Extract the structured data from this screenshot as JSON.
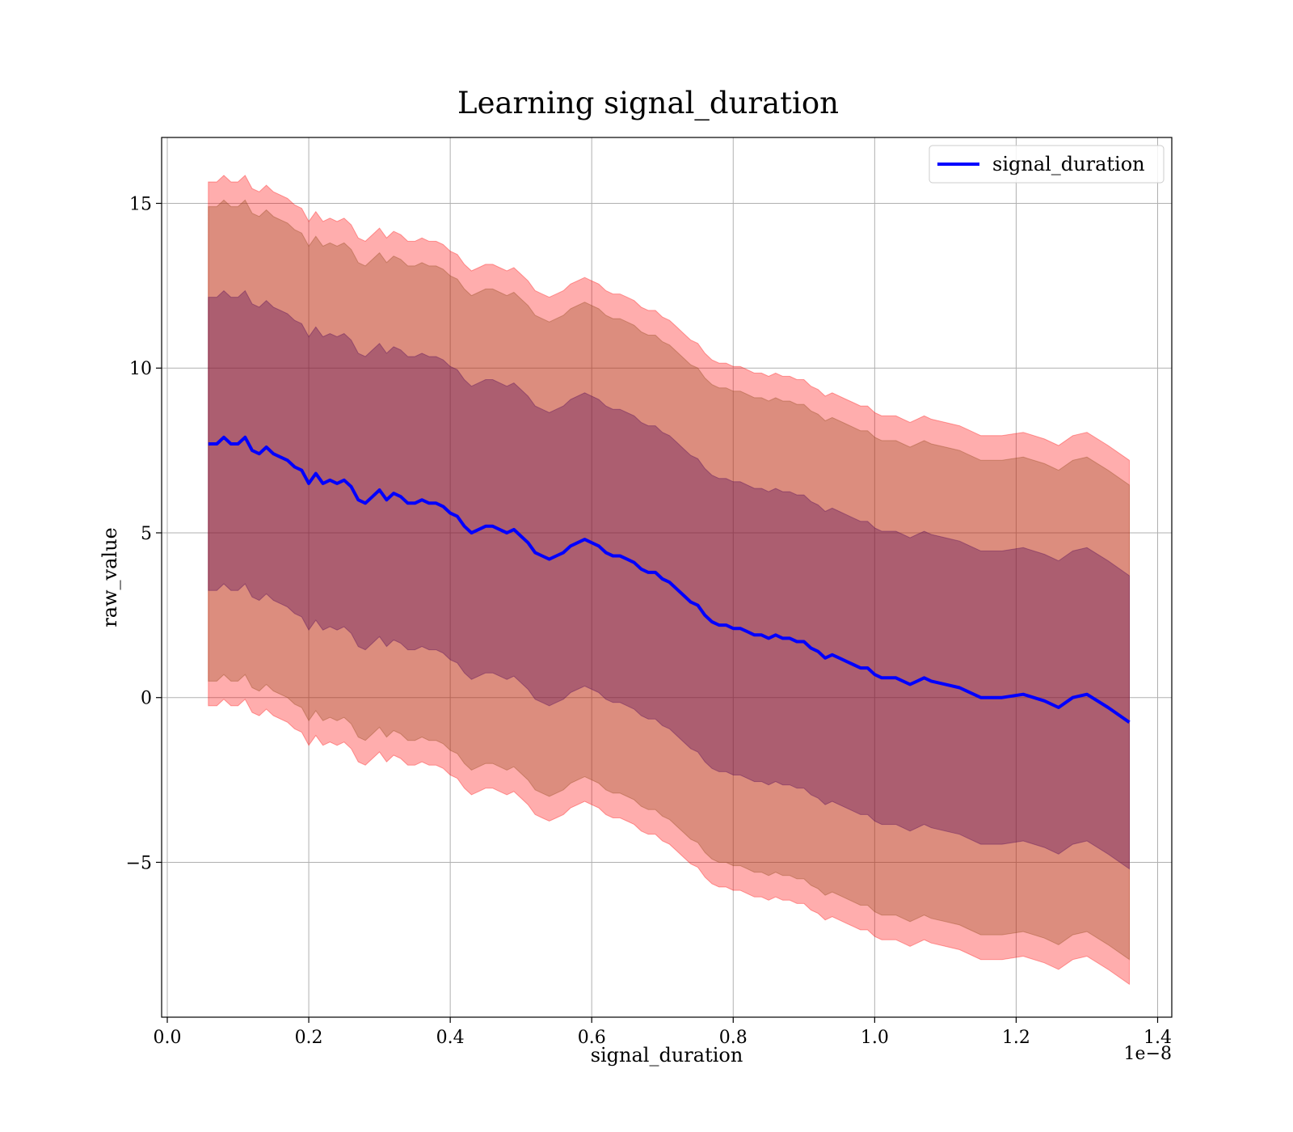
{
  "chart_data": {
    "type": "line",
    "title": "Learning signal_duration",
    "xlabel": "signal_duration",
    "ylabel": "raw_value",
    "x_offset_label": "1e−8",
    "xlim": [
      -0.008,
      1.42
    ],
    "ylim": [
      -9.7,
      17.0
    ],
    "x_ticks": [
      0.0,
      0.2,
      0.4,
      0.6,
      0.8,
      1.0,
      1.2,
      1.4
    ],
    "x_tick_labels": [
      "0.0",
      "0.2",
      "0.4",
      "0.6",
      "0.8",
      "1.0",
      "1.2",
      "1.4"
    ],
    "y_ticks": [
      -5,
      0,
      5,
      10,
      15
    ],
    "y_tick_labels": [
      "−5",
      "0",
      "5",
      "10",
      "15"
    ],
    "grid": true,
    "legend": {
      "placement": "top-right",
      "entries": [
        "signal_duration"
      ]
    },
    "colors": {
      "line": "#0000ff",
      "outer_band": "#ff0000",
      "middle_band": "#8b4513",
      "inner_band": "#4b0055"
    },
    "x": [
      0.058,
      0.07,
      0.08,
      0.09,
      0.1,
      0.11,
      0.12,
      0.13,
      0.14,
      0.15,
      0.16,
      0.17,
      0.18,
      0.19,
      0.2,
      0.21,
      0.22,
      0.23,
      0.24,
      0.25,
      0.26,
      0.27,
      0.28,
      0.29,
      0.3,
      0.31,
      0.32,
      0.33,
      0.34,
      0.35,
      0.36,
      0.37,
      0.38,
      0.39,
      0.4,
      0.41,
      0.42,
      0.43,
      0.44,
      0.45,
      0.46,
      0.47,
      0.48,
      0.49,
      0.5,
      0.51,
      0.52,
      0.53,
      0.54,
      0.55,
      0.56,
      0.57,
      0.58,
      0.59,
      0.6,
      0.61,
      0.62,
      0.63,
      0.64,
      0.65,
      0.66,
      0.67,
      0.68,
      0.69,
      0.7,
      0.71,
      0.72,
      0.73,
      0.74,
      0.75,
      0.76,
      0.77,
      0.78,
      0.79,
      0.8,
      0.81,
      0.82,
      0.83,
      0.84,
      0.85,
      0.86,
      0.87,
      0.88,
      0.89,
      0.9,
      0.91,
      0.92,
      0.93,
      0.94,
      0.95,
      0.96,
      0.97,
      0.98,
      0.99,
      1.0,
      1.01,
      1.02,
      1.03,
      1.04,
      1.05,
      1.06,
      1.07,
      1.08,
      1.1,
      1.12,
      1.13,
      1.15,
      1.18,
      1.21,
      1.24,
      1.26,
      1.28,
      1.3,
      1.33,
      1.36
    ],
    "series": [
      {
        "name": "signal_duration",
        "values": [
          7.7,
          7.7,
          7.9,
          7.7,
          7.7,
          7.9,
          7.5,
          7.4,
          7.6,
          7.4,
          7.3,
          7.2,
          7.0,
          6.9,
          6.5,
          6.8,
          6.5,
          6.6,
          6.5,
          6.6,
          6.4,
          6.0,
          5.9,
          6.1,
          6.3,
          6.0,
          6.2,
          6.1,
          5.9,
          5.9,
          6.0,
          5.9,
          5.9,
          5.8,
          5.6,
          5.5,
          5.2,
          5.0,
          5.1,
          5.2,
          5.2,
          5.1,
          5.0,
          5.1,
          4.9,
          4.7,
          4.4,
          4.3,
          4.2,
          4.3,
          4.4,
          4.6,
          4.7,
          4.8,
          4.7,
          4.6,
          4.4,
          4.3,
          4.3,
          4.2,
          4.1,
          3.9,
          3.8,
          3.8,
          3.6,
          3.5,
          3.3,
          3.1,
          2.9,
          2.8,
          2.5,
          2.3,
          2.2,
          2.2,
          2.1,
          2.1,
          2.0,
          1.9,
          1.9,
          1.8,
          1.9,
          1.8,
          1.8,
          1.7,
          1.7,
          1.5,
          1.4,
          1.2,
          1.3,
          1.2,
          1.1,
          1.0,
          0.9,
          0.9,
          0.7,
          0.6,
          0.6,
          0.6,
          0.5,
          0.4,
          0.5,
          0.6,
          0.5,
          0.4,
          0.3,
          0.2,
          0.0,
          0.0,
          0.1,
          -0.1,
          -0.3,
          0.0,
          0.1,
          -0.3,
          -0.75
        ]
      }
    ],
    "bands": [
      {
        "level": "outer",
        "half_width": 7.95
      },
      {
        "level": "middle",
        "half_width": 7.2
      },
      {
        "level": "inner",
        "half_width": 4.45
      }
    ]
  }
}
